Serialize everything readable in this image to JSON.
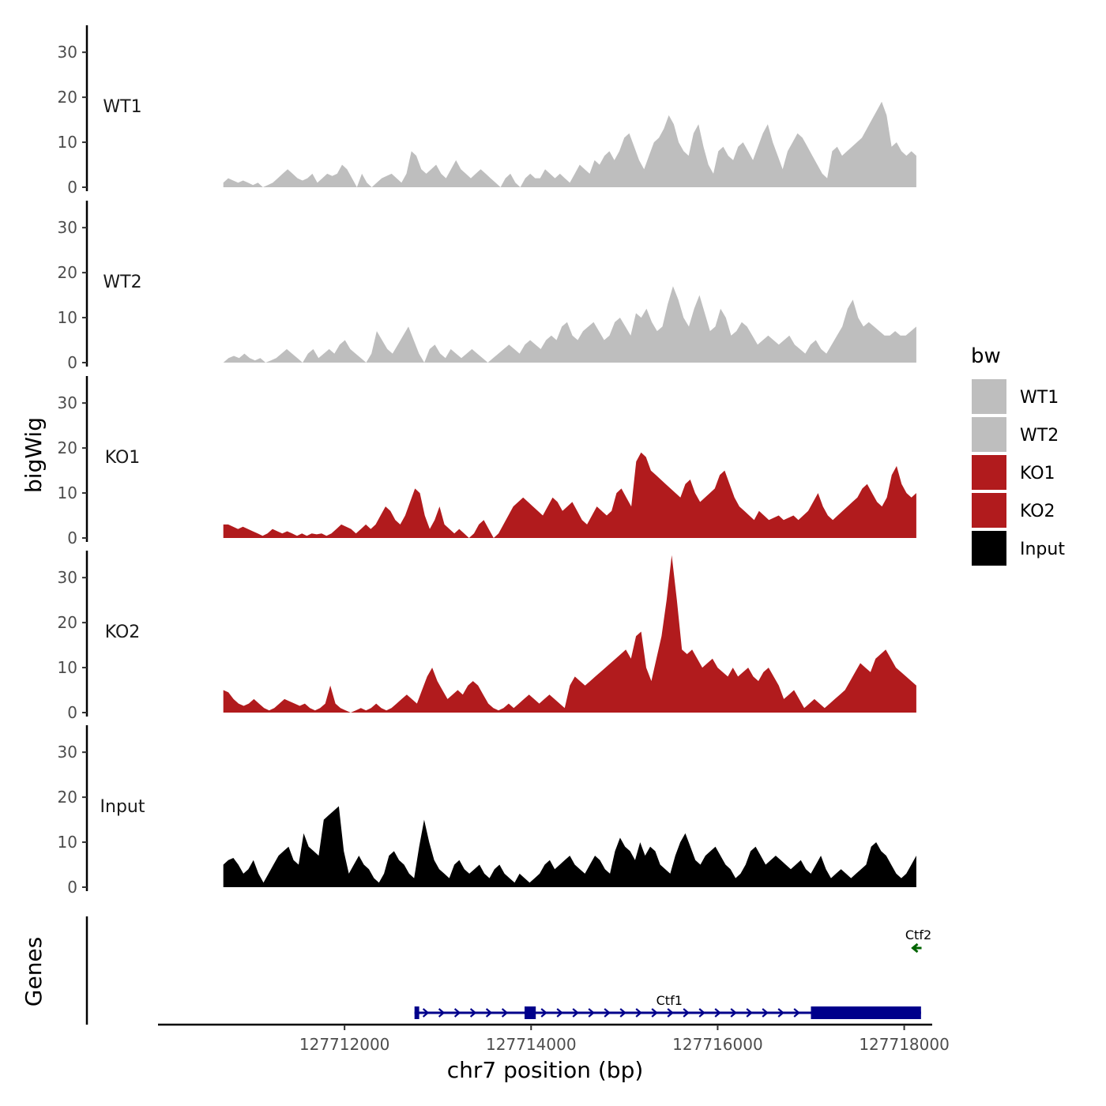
{
  "chart_data": {
    "type": "area",
    "chromosome": "chr7",
    "xlabel": "chr7 position (bp)",
    "ylabel": "bigWig",
    "genes_label": "Genes",
    "xlim": [
      127710000,
      127718300
    ],
    "x_ticks": [
      127712000,
      127714000,
      127716000,
      127718000
    ],
    "x_tick_labels": [
      "127712000",
      "127714000",
      "127716000",
      "127718000"
    ],
    "y_ticks": [
      0,
      10,
      20,
      30
    ],
    "y_tick_labels": [
      "0",
      "10",
      "20",
      "30"
    ],
    "ylim": [
      0,
      36
    ],
    "signal_start": 127710700,
    "signal_end": 127718130,
    "tracks": [
      {
        "name": "WT1",
        "color": "#bebebe",
        "values": [
          1,
          2,
          1.5,
          1,
          1.5,
          1,
          0.5,
          1,
          0,
          0.5,
          1,
          2,
          3,
          4,
          3,
          2,
          1.5,
          2,
          3,
          1,
          2,
          3,
          2.5,
          3,
          5,
          4,
          2,
          0,
          3,
          1,
          0,
          1,
          2,
          2.5,
          3,
          2,
          1,
          3,
          8,
          7,
          4,
          3,
          4,
          5,
          3,
          2,
          4,
          6,
          4,
          3,
          2,
          3,
          4,
          3,
          2,
          1,
          0,
          2,
          3,
          1,
          0,
          2,
          3,
          2,
          2,
          4,
          3,
          2,
          3,
          2,
          1,
          3,
          5,
          4,
          3,
          6,
          5,
          7,
          8,
          6,
          8,
          11,
          12,
          9,
          6,
          4,
          7,
          10,
          11,
          13,
          16,
          14,
          10,
          8,
          7,
          12,
          14,
          9,
          5,
          3,
          8,
          9,
          7,
          6,
          9,
          10,
          8,
          6,
          9,
          12,
          14,
          10,
          7,
          4,
          8,
          10,
          12,
          11,
          9,
          7,
          5,
          3,
          2,
          8,
          9,
          7,
          8,
          9,
          10,
          11,
          13,
          15,
          17,
          19,
          16,
          9,
          10,
          8,
          7,
          8,
          7
        ]
      },
      {
        "name": "WT2",
        "color": "#bebebe",
        "values": [
          0,
          1,
          1.5,
          1,
          2,
          1,
          0.5,
          1,
          0,
          0.5,
          1,
          2,
          3,
          2,
          1,
          0,
          2,
          3,
          1,
          2,
          3,
          2,
          4,
          5,
          3,
          2,
          1,
          0,
          2,
          7,
          5,
          3,
          2,
          4,
          6,
          8,
          5,
          2,
          0,
          3,
          4,
          2,
          1,
          3,
          2,
          1,
          2,
          3,
          2,
          1,
          0,
          1,
          2,
          3,
          4,
          3,
          2,
          4,
          5,
          4,
          3,
          5,
          6,
          5,
          8,
          9,
          6,
          5,
          7,
          8,
          9,
          7,
          5,
          6,
          9,
          10,
          8,
          6,
          11,
          10,
          12,
          9,
          7,
          8,
          13,
          17,
          14,
          10,
          8,
          12,
          15,
          11,
          7,
          8,
          12,
          10,
          6,
          7,
          9,
          8,
          6,
          4,
          5,
          6,
          5,
          4,
          5,
          6,
          4,
          3,
          2,
          4,
          5,
          3,
          2,
          4,
          6,
          8,
          12,
          14,
          10,
          8,
          9,
          8,
          7,
          6,
          6,
          7,
          6,
          6,
          7,
          8
        ]
      },
      {
        "name": "KO1",
        "color": "#b11b1d",
        "values": [
          3,
          3,
          2.5,
          2,
          2.5,
          2,
          1.5,
          1,
          0.5,
          1,
          2,
          1.5,
          1,
          1.5,
          1,
          0.5,
          1,
          0.5,
          1,
          0.8,
          1,
          0.5,
          1,
          2,
          3,
          2.5,
          2,
          1,
          2,
          3,
          2,
          3,
          5,
          7,
          6,
          4,
          3,
          5,
          8,
          11,
          10,
          5,
          2,
          4,
          7,
          3,
          2,
          1,
          2,
          1,
          0,
          1,
          3,
          4,
          2,
          0,
          1,
          3,
          5,
          7,
          8,
          9,
          8,
          7,
          6,
          5,
          7,
          9,
          8,
          6,
          7,
          8,
          6,
          4,
          3,
          5,
          7,
          6,
          5,
          6,
          10,
          11,
          9,
          7,
          17,
          19,
          18,
          15,
          14,
          13,
          12,
          11,
          10,
          9,
          12,
          13,
          10,
          8,
          9,
          10,
          11,
          14,
          15,
          12,
          9,
          7,
          6,
          5,
          4,
          6,
          5,
          4,
          4.5,
          5,
          4,
          4.5,
          5,
          4,
          5,
          6,
          8,
          10,
          7,
          5,
          4,
          5,
          6,
          7,
          8,
          9,
          11,
          12,
          10,
          8,
          7,
          9,
          14,
          16,
          12,
          10,
          9,
          10
        ]
      },
      {
        "name": "KO2",
        "color": "#b11b1d",
        "values": [
          5,
          4.5,
          3,
          2,
          1.5,
          2,
          3,
          2,
          1,
          0.5,
          1,
          2,
          3,
          2.5,
          2,
          1.5,
          2,
          1,
          0.5,
          1,
          2,
          6,
          2,
          1,
          0.5,
          0,
          0.5,
          1,
          0.5,
          1,
          2,
          1,
          0.5,
          1,
          2,
          3,
          4,
          3,
          2,
          5,
          8,
          10,
          7,
          5,
          3,
          4,
          5,
          4,
          6,
          7,
          6,
          4,
          2,
          1,
          0.5,
          1,
          2,
          1,
          2,
          3,
          4,
          3,
          2,
          3,
          4,
          3,
          2,
          1,
          6,
          8,
          7,
          6,
          7,
          8,
          9,
          10,
          11,
          12,
          13,
          14,
          12,
          17,
          18,
          10,
          7,
          12,
          17,
          25,
          35,
          25,
          14,
          13,
          14,
          12,
          10,
          11,
          12,
          10,
          9,
          8,
          10,
          8,
          9,
          10,
          8,
          7,
          9,
          10,
          8,
          6,
          3,
          4,
          5,
          3,
          1,
          2,
          3,
          2,
          1,
          2,
          3,
          4,
          5,
          7,
          9,
          11,
          10,
          9,
          12,
          13,
          14,
          12,
          10,
          9,
          8,
          7,
          6
        ]
      },
      {
        "name": "Input",
        "color": "#000000",
        "values": [
          5,
          6,
          6.5,
          5,
          3,
          4,
          6,
          3,
          1,
          3,
          5,
          7,
          8,
          9,
          6,
          5,
          12,
          9,
          8,
          7,
          15,
          16,
          17,
          18,
          8,
          3,
          5,
          7,
          5,
          4,
          2,
          1,
          3,
          7,
          8,
          6,
          5,
          3,
          2,
          9,
          15,
          10,
          6,
          4,
          3,
          2,
          5,
          6,
          4,
          3,
          4,
          5,
          3,
          2,
          4,
          5,
          3,
          2,
          1,
          3,
          2,
          1,
          2,
          3,
          5,
          6,
          4,
          5,
          6,
          7,
          5,
          4,
          3,
          5,
          7,
          6,
          4,
          3,
          8,
          11,
          9,
          8,
          6,
          10,
          7,
          9,
          8,
          5,
          4,
          3,
          7,
          10,
          12,
          9,
          6,
          5,
          7,
          8,
          9,
          7,
          5,
          4,
          2,
          3,
          5,
          8,
          9,
          7,
          5,
          6,
          7,
          6,
          5,
          4,
          5,
          6,
          4,
          3,
          5,
          7,
          4,
          2,
          3,
          4,
          3,
          2,
          3,
          4,
          5,
          9,
          10,
          8,
          7,
          5,
          3,
          2,
          3,
          5,
          7
        ]
      }
    ],
    "genes": [
      {
        "name": "Ctf1",
        "strand": "+",
        "color": "#00008b",
        "start": 127712750,
        "end": 127718180,
        "exons": [
          [
            127712750,
            127712800
          ],
          [
            127713930,
            127714050
          ],
          [
            127717000,
            127718180
          ]
        ]
      },
      {
        "name": "Ctf2",
        "strand": "-",
        "color": "#006400",
        "start": 127718090,
        "end": 127718180,
        "exons": []
      }
    ],
    "legend": {
      "title": "bw",
      "entries": [
        {
          "label": "WT1",
          "color": "#bebebe"
        },
        {
          "label": "WT2",
          "color": "#bebebe"
        },
        {
          "label": "KO1",
          "color": "#b11b1d"
        },
        {
          "label": "KO2",
          "color": "#b11b1d"
        },
        {
          "label": "Input",
          "color": "#000000"
        }
      ]
    }
  }
}
